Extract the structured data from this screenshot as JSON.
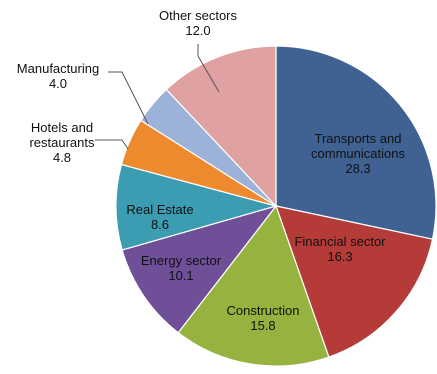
{
  "chart_data": {
    "type": "pie",
    "title": "",
    "slices": [
      {
        "label": "Transports and communications",
        "value": 28.3,
        "color": "#3F6293",
        "label_lines": [
          "Transports and",
          "communications"
        ]
      },
      {
        "label": "Financial sector",
        "value": 16.3,
        "color": "#B53B38",
        "label_lines": [
          "Financial sector"
        ]
      },
      {
        "label": "Construction",
        "value": 15.8,
        "color": "#95B33E",
        "label_lines": [
          "Construction"
        ]
      },
      {
        "label": "Energy sector",
        "value": 10.1,
        "color": "#6E4F98",
        "label_lines": [
          "Energy sector"
        ]
      },
      {
        "label": "Real Estate",
        "value": 8.6,
        "color": "#3C9DB2",
        "label_lines": [
          "Real Estate"
        ]
      },
      {
        "label": "Hotels and restaurants",
        "value": 4.8,
        "color": "#EE8A2E",
        "label_lines": [
          "Hotels and",
          "restaurants"
        ]
      },
      {
        "label": "Manufacturing",
        "value": 4.0,
        "color": "#9DB2D8",
        "label_lines": [
          "Manufacturing"
        ]
      },
      {
        "label": "Other sectors",
        "value": 12.0,
        "color": "#DFA1A1",
        "label_lines": [
          "Other sectors"
        ]
      }
    ],
    "value_format": "0.0",
    "start_angle_degrees": 0,
    "direction": "clockwise",
    "legend": "none"
  }
}
